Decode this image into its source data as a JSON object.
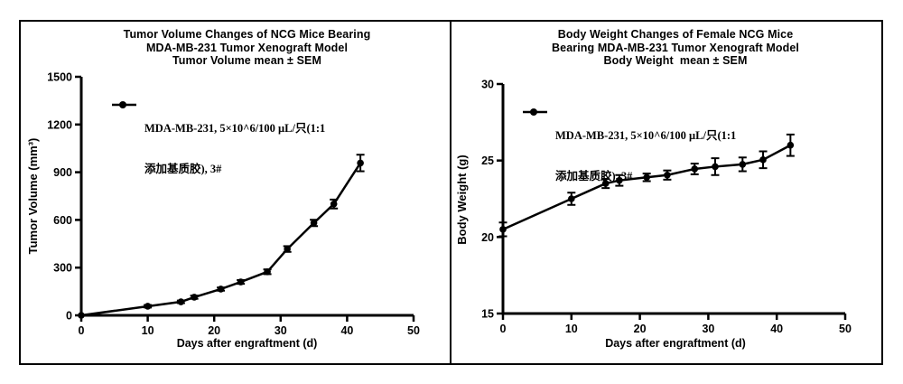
{
  "figure": {
    "description": "Two-panel black and white scientific line figure with error bars",
    "border_color": "#000000",
    "background_color": "#ffffff",
    "accent_color": "#000000"
  },
  "chart_data": [
    {
      "type": "line",
      "title": "Tumor Volume Changes of NCG Mice Bearing MDA-MB-231 Tumor Xenograft Model Tumor Volume mean ± SEM",
      "title_lines": [
        "Tumor Volume Changes of NCG Mice Bearing",
        "MDA-MB-231 Tumor Xenograft Model",
        "Tumor Volume mean ± SEM"
      ],
      "xlabel": "Days after engraftment (d)",
      "ylabel": "Tumor Volume (mm³)",
      "xlim": [
        0,
        50
      ],
      "ylim": [
        0,
        1500
      ],
      "xticks": [
        0,
        10,
        20,
        30,
        40,
        50
      ],
      "yticks": [
        0,
        300,
        600,
        900,
        1200,
        1500
      ],
      "grid": false,
      "legend_position": "inside-top-left",
      "error_bars": "mean ± SEM",
      "series": [
        {
          "name": "MDA-MB-231, 5×10^6/100 μL/只(1:1 添加基质胶), 3#",
          "legend_lines": [
            "MDA-MB-231, 5×10^6/100 μL/只(1:1",
            "添加基质胶), 3#"
          ],
          "marker": "filled-circle",
          "color": "#000000",
          "x": [
            0,
            10,
            15,
            17,
            21,
            24,
            28,
            31,
            35,
            38,
            42
          ],
          "y": [
            0,
            57,
            85,
            114,
            165,
            210,
            274,
            417,
            581,
            700,
            958
          ],
          "sem": [
            0,
            8,
            8,
            10,
            10,
            12,
            15,
            18,
            20,
            28,
            52
          ]
        }
      ]
    },
    {
      "type": "line",
      "title": "Body Weight Changes of Female NCG Mice Bearing MDA-MB-231 Tumor Xenograft Model Body Weight mean ± SEM",
      "title_lines": [
        "Body Weight Changes of Female NCG Mice",
        "Bearing MDA-MB-231 Tumor Xenograft Model",
        "Body Weight  mean ± SEM"
      ],
      "xlabel": "Days after engraftment (d)",
      "ylabel": "Body Weight (g)",
      "xlim": [
        0,
        50
      ],
      "ylim": [
        15,
        30
      ],
      "xticks": [
        0,
        10,
        20,
        30,
        40,
        50
      ],
      "yticks": [
        15,
        20,
        25,
        30
      ],
      "grid": false,
      "legend_position": "inside-top-left",
      "error_bars": "mean ± SEM",
      "series": [
        {
          "name": "MDA-MB-231, 5×10^6/100 μL/只(1:1 添加基质胶), 3#",
          "legend_lines": [
            "MDA-MB-231, 5×10^6/100 μL/只(1:1",
            "添加基质胶), 3#"
          ],
          "marker": "filled-circle",
          "color": "#000000",
          "x": [
            0,
            10,
            15,
            17,
            21,
            24,
            28,
            31,
            35,
            38,
            42
          ],
          "y": [
            20.5,
            22.5,
            23.5,
            23.7,
            23.9,
            24.05,
            24.45,
            24.6,
            24.75,
            25.05,
            26.0
          ],
          "sem": [
            0.45,
            0.4,
            0.3,
            0.35,
            0.25,
            0.3,
            0.35,
            0.55,
            0.45,
            0.55,
            0.7
          ]
        }
      ]
    }
  ]
}
